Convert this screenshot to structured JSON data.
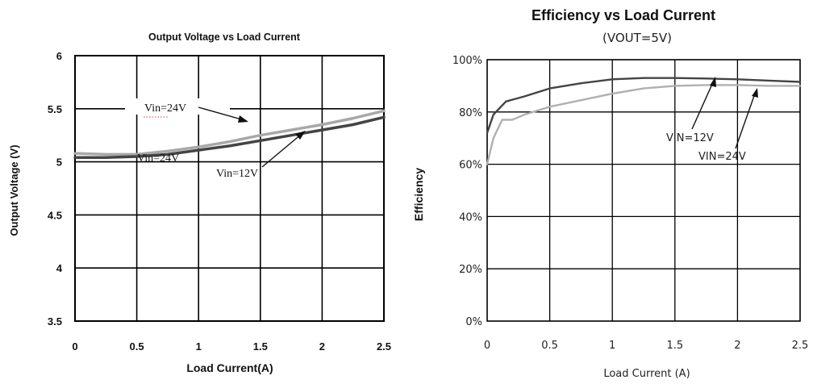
{
  "chart_data": [
    {
      "type": "line",
      "title": "Output Voltage vs Load Current",
      "xlabel": "Load Current(A)",
      "ylabel": "Output Voltage (V)",
      "xlim": [
        0,
        2.5
      ],
      "ylim": [
        3.5,
        6
      ],
      "xticks": [
        "0",
        "0.5",
        "1",
        "1.5",
        "2",
        "2.5"
      ],
      "yticks": [
        "6",
        "5.5",
        "5",
        "4.5",
        "4",
        "3.5"
      ],
      "grid": true,
      "series": [
        {
          "name": "Vin=24V",
          "color": "#a8a8a8",
          "x": [
            0,
            0.25,
            0.5,
            0.75,
            1,
            1.25,
            1.5,
            1.75,
            2,
            2.25,
            2.5
          ],
          "y": [
            5.08,
            5.07,
            5.07,
            5.1,
            5.14,
            5.19,
            5.25,
            5.3,
            5.35,
            5.41,
            5.48
          ]
        },
        {
          "name": "Vin=12V",
          "color": "#444444",
          "x": [
            0,
            0.25,
            0.5,
            0.75,
            1,
            1.25,
            1.5,
            1.75,
            2,
            2.25,
            2.5
          ],
          "y": [
            5.04,
            5.04,
            5.05,
            5.07,
            5.11,
            5.15,
            5.2,
            5.25,
            5.3,
            5.35,
            5.42
          ]
        }
      ],
      "annotations": [
        {
          "text": "Vin=24V",
          "x": 0.6,
          "y": 5.48
        },
        {
          "text": "Vin=24V",
          "x": 0.55,
          "y": 5.06
        },
        {
          "text": "Vin=12V",
          "x": 1.15,
          "y": 4.88
        }
      ]
    },
    {
      "type": "line",
      "title": "Efficiency vs Load Current",
      "subtitle": "(VOUT=5V)",
      "xlabel": "Load Current (A)",
      "ylabel": "Efficiency",
      "xlim": [
        0,
        2.5
      ],
      "ylim": [
        0,
        100
      ],
      "xticks": [
        "0",
        "0.5",
        "1",
        "1.5",
        "2",
        "2.5"
      ],
      "yticks": [
        "100%",
        "80%",
        "60%",
        "40%",
        "20%",
        "0%"
      ],
      "grid": true,
      "series": [
        {
          "name": "VIN=12V",
          "color": "#444444",
          "x": [
            0,
            0.05,
            0.15,
            0.3,
            0.5,
            0.75,
            1,
            1.25,
            1.5,
            1.75,
            2,
            2.25,
            2.5
          ],
          "y": [
            72,
            79,
            84,
            86,
            89,
            91,
            92.5,
            93,
            93,
            92.8,
            92.5,
            92,
            91.5
          ]
        },
        {
          "name": "VIN=24V",
          "color": "#b0b0b0",
          "x": [
            0,
            0.05,
            0.12,
            0.2,
            0.3,
            0.5,
            0.75,
            1,
            1.25,
            1.5,
            1.75,
            2,
            2.25,
            2.5
          ],
          "y": [
            60,
            70,
            77,
            77,
            79,
            82,
            84.5,
            87,
            89,
            90,
            90.3,
            90.3,
            90,
            90
          ]
        }
      ],
      "annotations": [
        {
          "text": "VIN=12V",
          "x": 1.35,
          "y": 73
        },
        {
          "text": "VIN=24V",
          "x": 1.75,
          "y": 65
        }
      ]
    }
  ]
}
